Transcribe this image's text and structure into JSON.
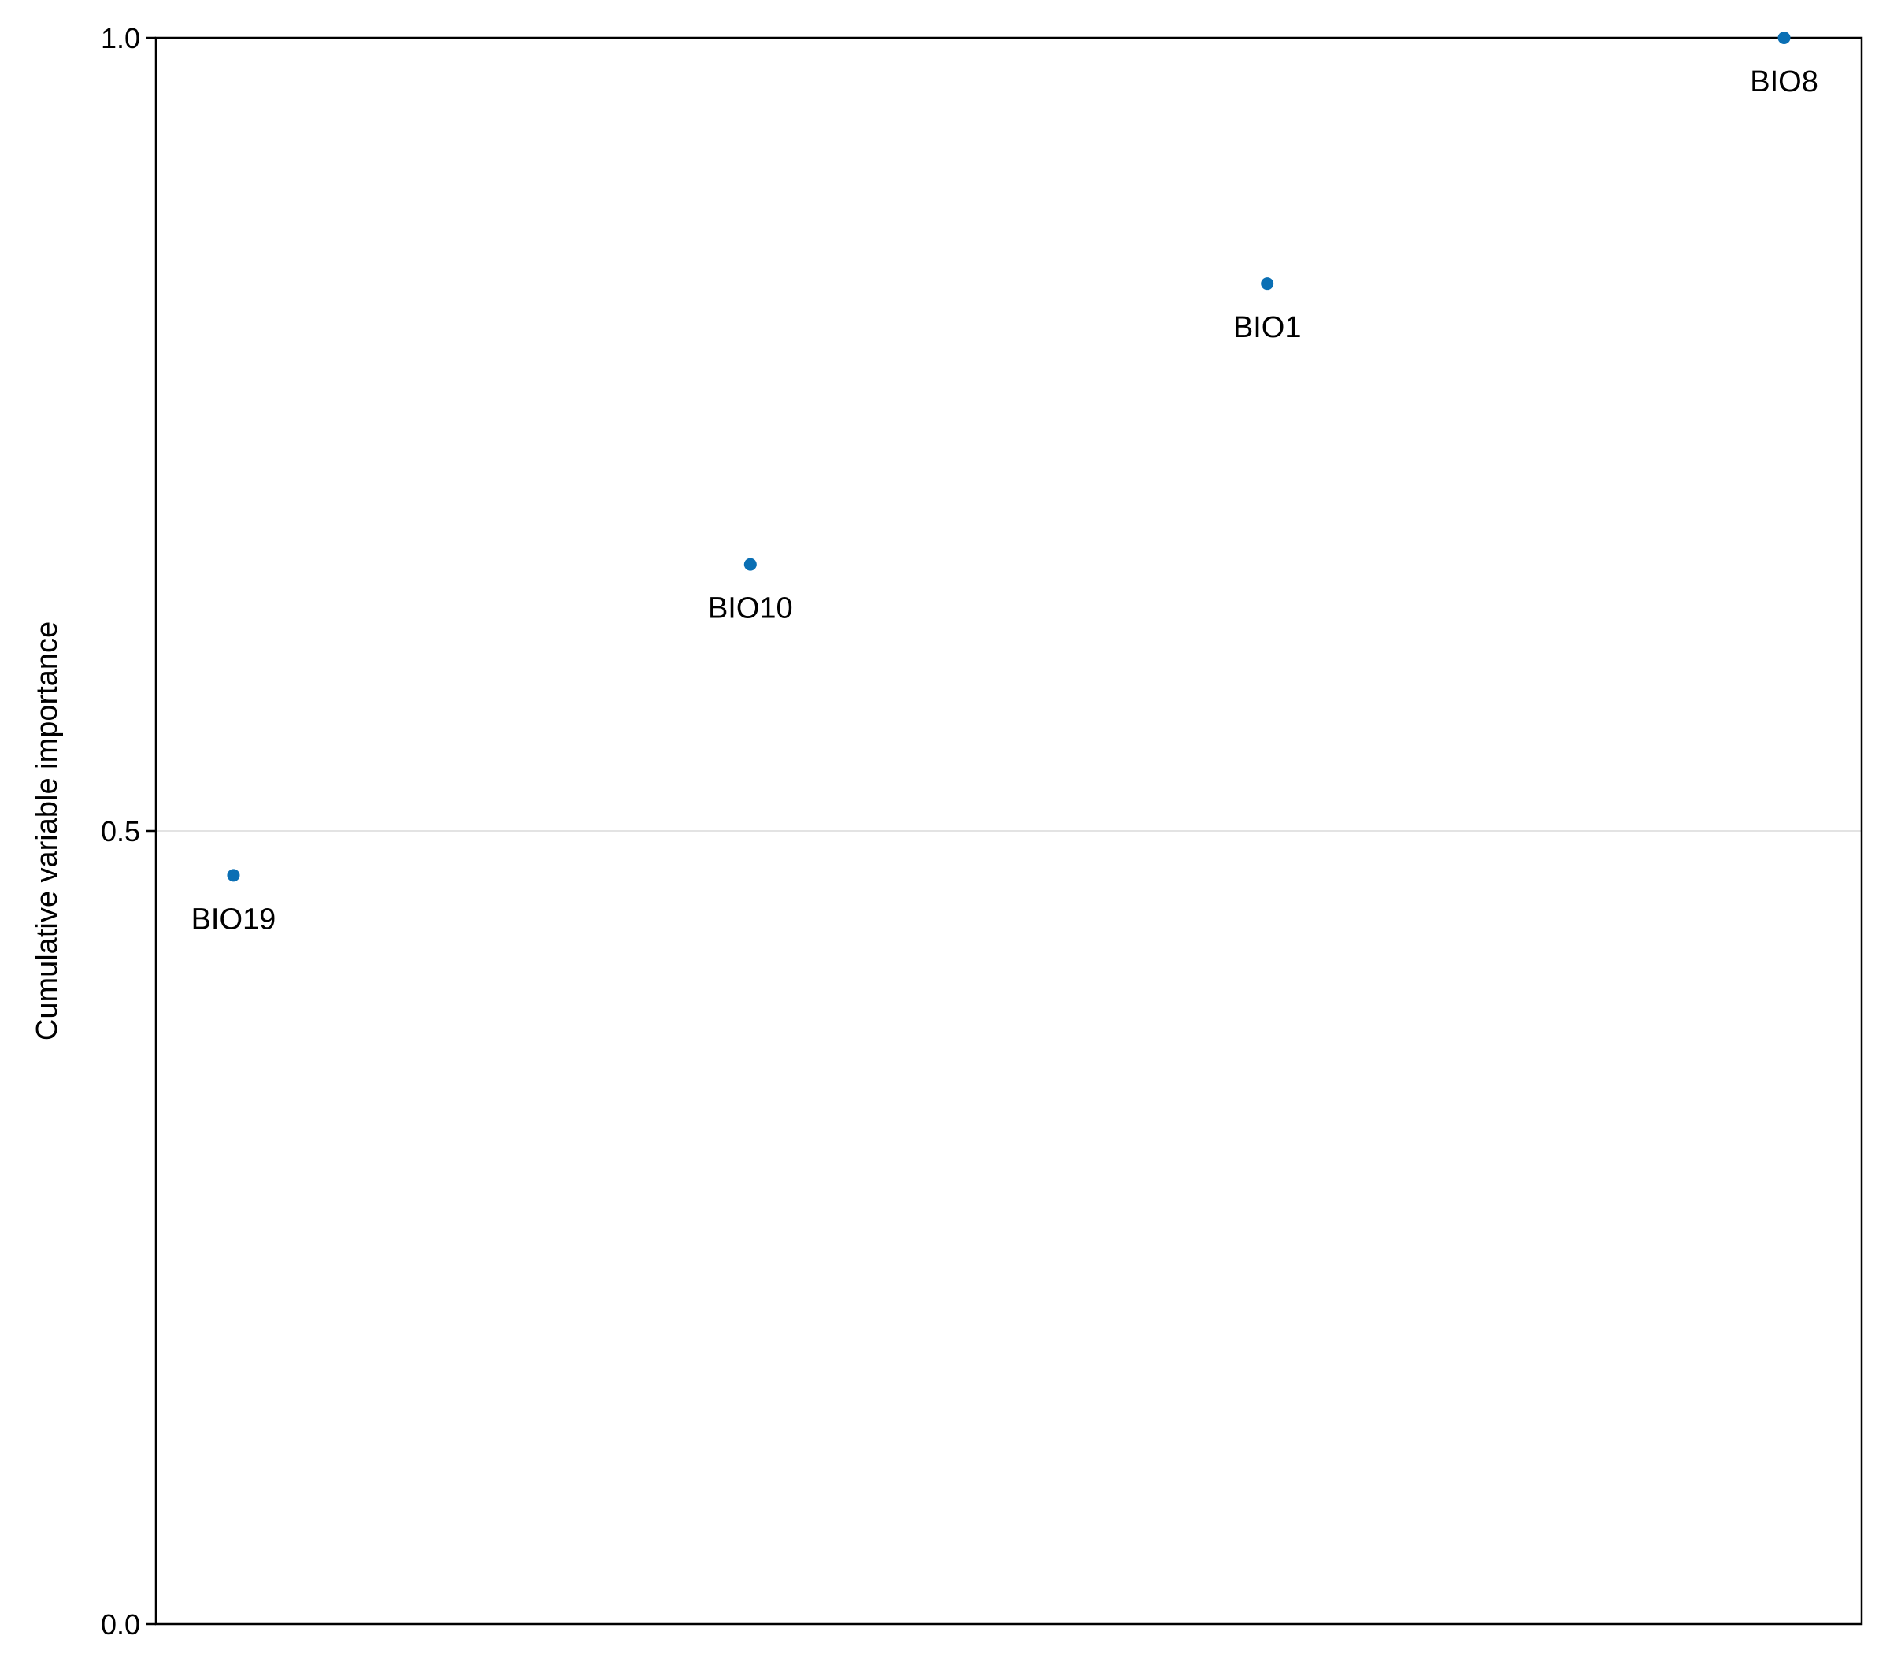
{
  "chart_data": {
    "type": "scatter",
    "title": "",
    "xlabel": "",
    "ylabel": "Cumulative variable importance",
    "ylim": [
      0,
      1
    ],
    "y_ticks": [
      0.0,
      0.5,
      1.0
    ],
    "y_tick_labels": [
      "0.0",
      "0.5",
      "1.0"
    ],
    "grid": "horizontal at 0.5",
    "series": [
      {
        "color": "#0a6fb4",
        "points": [
          {
            "x": 1,
            "y": 0.472,
            "label": "BIO19"
          },
          {
            "x": 2,
            "y": 0.668,
            "label": "BIO10"
          },
          {
            "x": 3,
            "y": 0.845,
            "label": "BIO1"
          },
          {
            "x": 4,
            "y": 1.0,
            "label": "BIO8"
          }
        ]
      }
    ],
    "xlim": [
      0.85,
      4.15
    ]
  }
}
